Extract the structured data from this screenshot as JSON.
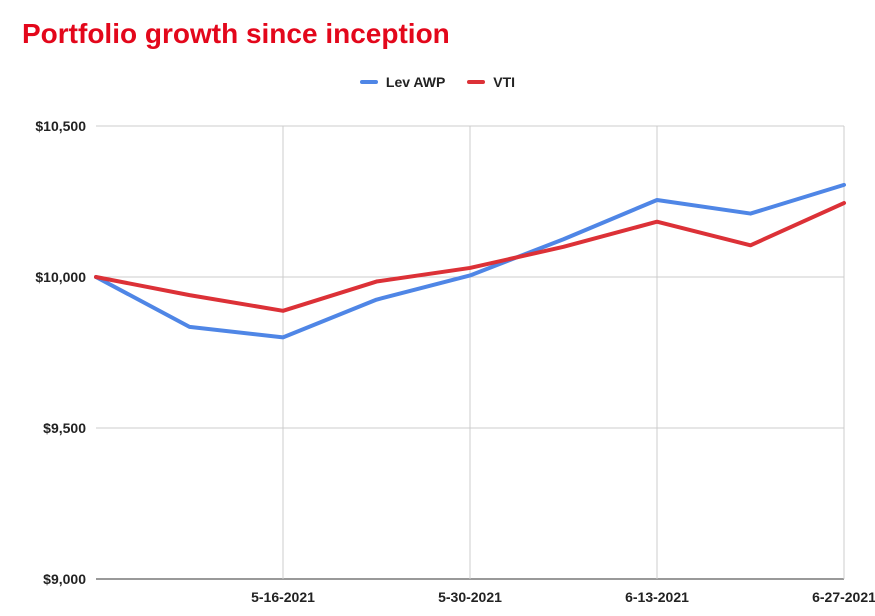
{
  "chart_data": {
    "type": "line",
    "title": "Portfolio growth since inception",
    "x": [
      "5-2-2021",
      "5-9-2021",
      "5-16-2021",
      "5-23-2021",
      "5-30-2021",
      "6-6-2021",
      "6-13-2021",
      "6-20-2021",
      "6-27-2021"
    ],
    "x_tick_labels": [
      "5-16-2021",
      "5-30-2021",
      "6-13-2021",
      "6-27-2021"
    ],
    "series": [
      {
        "name": "Lev AWP",
        "color": "#4f86e6",
        "values": [
          10000,
          9835,
          9800,
          9925,
          10005,
          10125,
          10255,
          10210,
          10305
        ]
      },
      {
        "name": "VTI",
        "color": "#dc3137",
        "values": [
          10000,
          9940,
          9888,
          9985,
          10030,
          10100,
          10183,
          10105,
          10245
        ]
      }
    ],
    "y_ticks": [
      "$10,500",
      "$10,000",
      "$9,500",
      "$9,000"
    ],
    "ylim": [
      9000,
      10500
    ],
    "grid": true,
    "legend_position": "top-center",
    "title_color": "#e3071b"
  }
}
